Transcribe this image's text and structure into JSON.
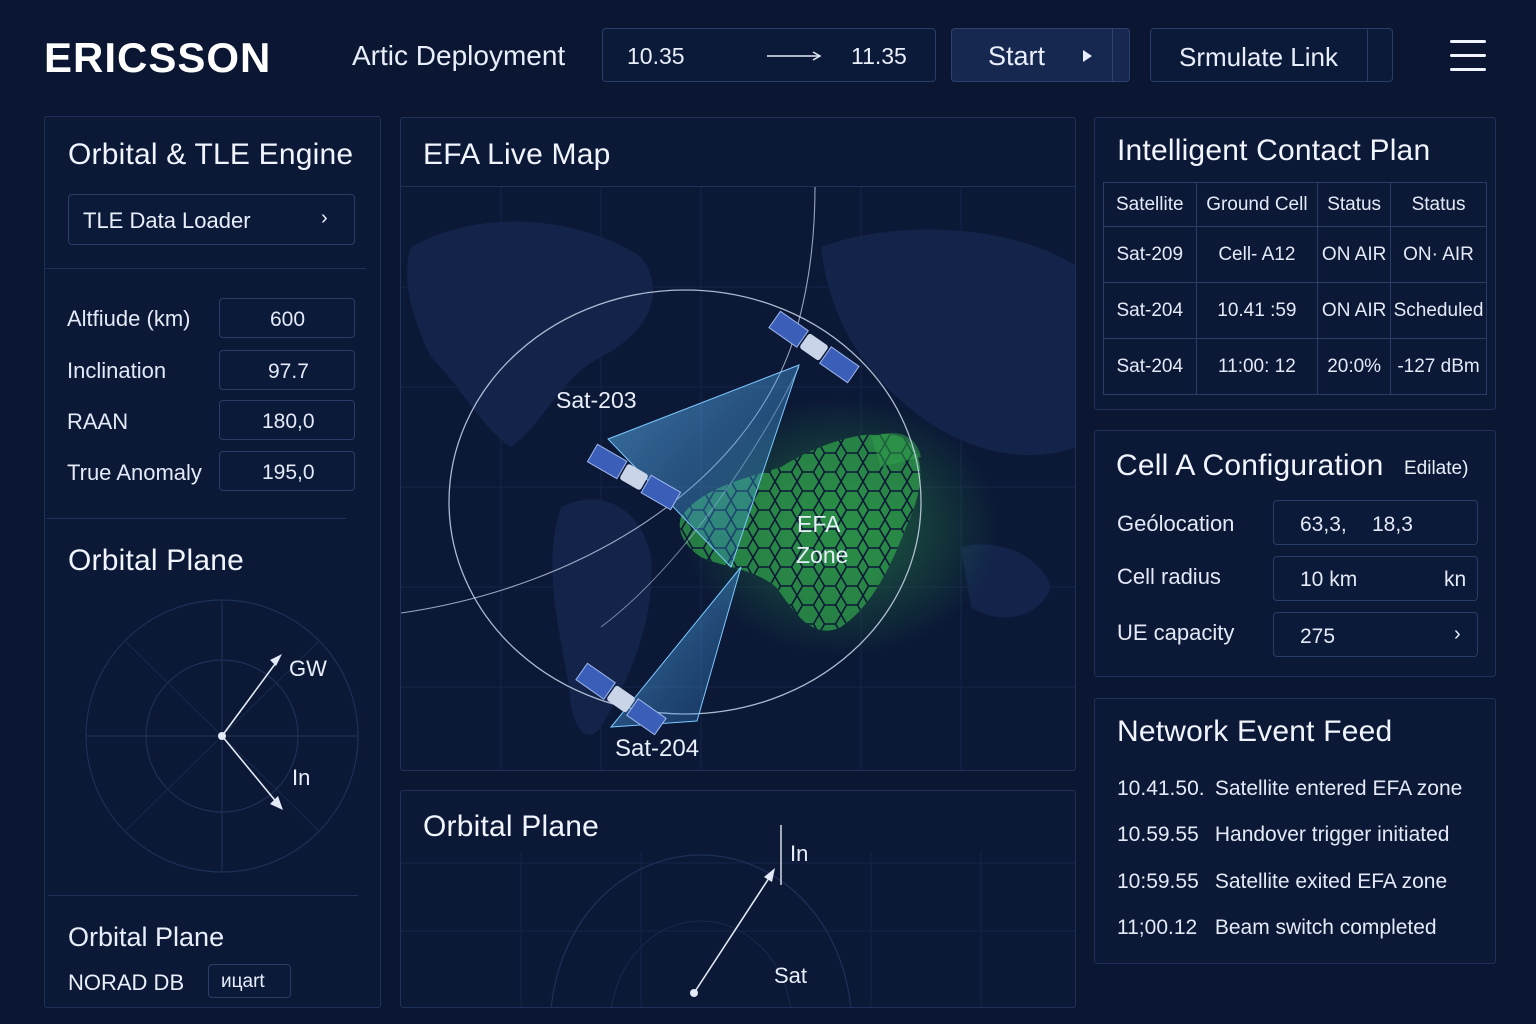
{
  "header": {
    "logo": "ERICSSON",
    "deployment": "Artic Deployment",
    "time_start": "10.35",
    "time_end": "11.35",
    "start_label": "Start",
    "simulate_label": "Srmulate Link"
  },
  "orbital_engine": {
    "title": "Orbital & TLE Engine",
    "loader_label": "TLE Data Loader",
    "params": [
      {
        "label": "Altfiude (km)",
        "value": "600"
      },
      {
        "label": "Inclination",
        "value": "97.7"
      },
      {
        "label": "RAAN",
        "value": "180,0"
      },
      {
        "label": "True Anomaly",
        "value": "195,0"
      }
    ]
  },
  "orbital_plane_left": {
    "title": "Orbital Plane",
    "gw_label": "GW",
    "in_label": "In"
  },
  "orbital_plane_footer": {
    "title": "Orbital Plane",
    "norad_label": "NORAD DB",
    "norad_button": "ицаrt"
  },
  "live_map": {
    "title": "EFA Live Map",
    "sat_a": "Sat-203",
    "sat_b": "Sat-204",
    "zone_line1": "EFA",
    "zone_line2": "Zone"
  },
  "orbital_plane_bottom": {
    "title": "Orbital Plane",
    "in_label": "In",
    "sat_label": "Sat"
  },
  "contact_plan": {
    "title": "Intelligent Contact Plan",
    "columns": [
      "Satellite",
      "Ground Cell",
      "Status",
      "Status"
    ],
    "rows": [
      [
        "Sat-209",
        "Cell- A12",
        "ON AIR",
        "ON· AIR"
      ],
      [
        "Sat-204",
        "10.41 :59",
        "ON AIR",
        "Scheduled"
      ],
      [
        "Sat-204",
        "11:00: 12",
        "20:0%",
        "-127 dBm"
      ]
    ]
  },
  "cell_config": {
    "title": "Cell A Configuration",
    "edit_label": "Edilate)",
    "geolocation_label": "Geólocation",
    "geolocation_lat": "63,3,",
    "geolocation_lon": "18,3",
    "radius_label": "Cell radius",
    "radius_value": "10 km",
    "radius_unit": "kn",
    "ue_label": "UE capacity",
    "ue_value": "275"
  },
  "event_feed": {
    "title": "Network Event Feed",
    "events": [
      {
        "time": "10.41.50.",
        "text": "Satellite entered EFA zone"
      },
      {
        "time": "10.59.55",
        "text": "Handover trigger initiated"
      },
      {
        "time": "10:59.55",
        "text": "Satellite exited EFA zone"
      },
      {
        "time": "11;00.12",
        "text": "Beam switch completed"
      }
    ]
  },
  "colors": {
    "background": "#0a1632",
    "panel": "#0b1836",
    "border": "#2a3d66",
    "efa_green": "#3aa84a",
    "beam_blue": "#4aa8e8"
  }
}
